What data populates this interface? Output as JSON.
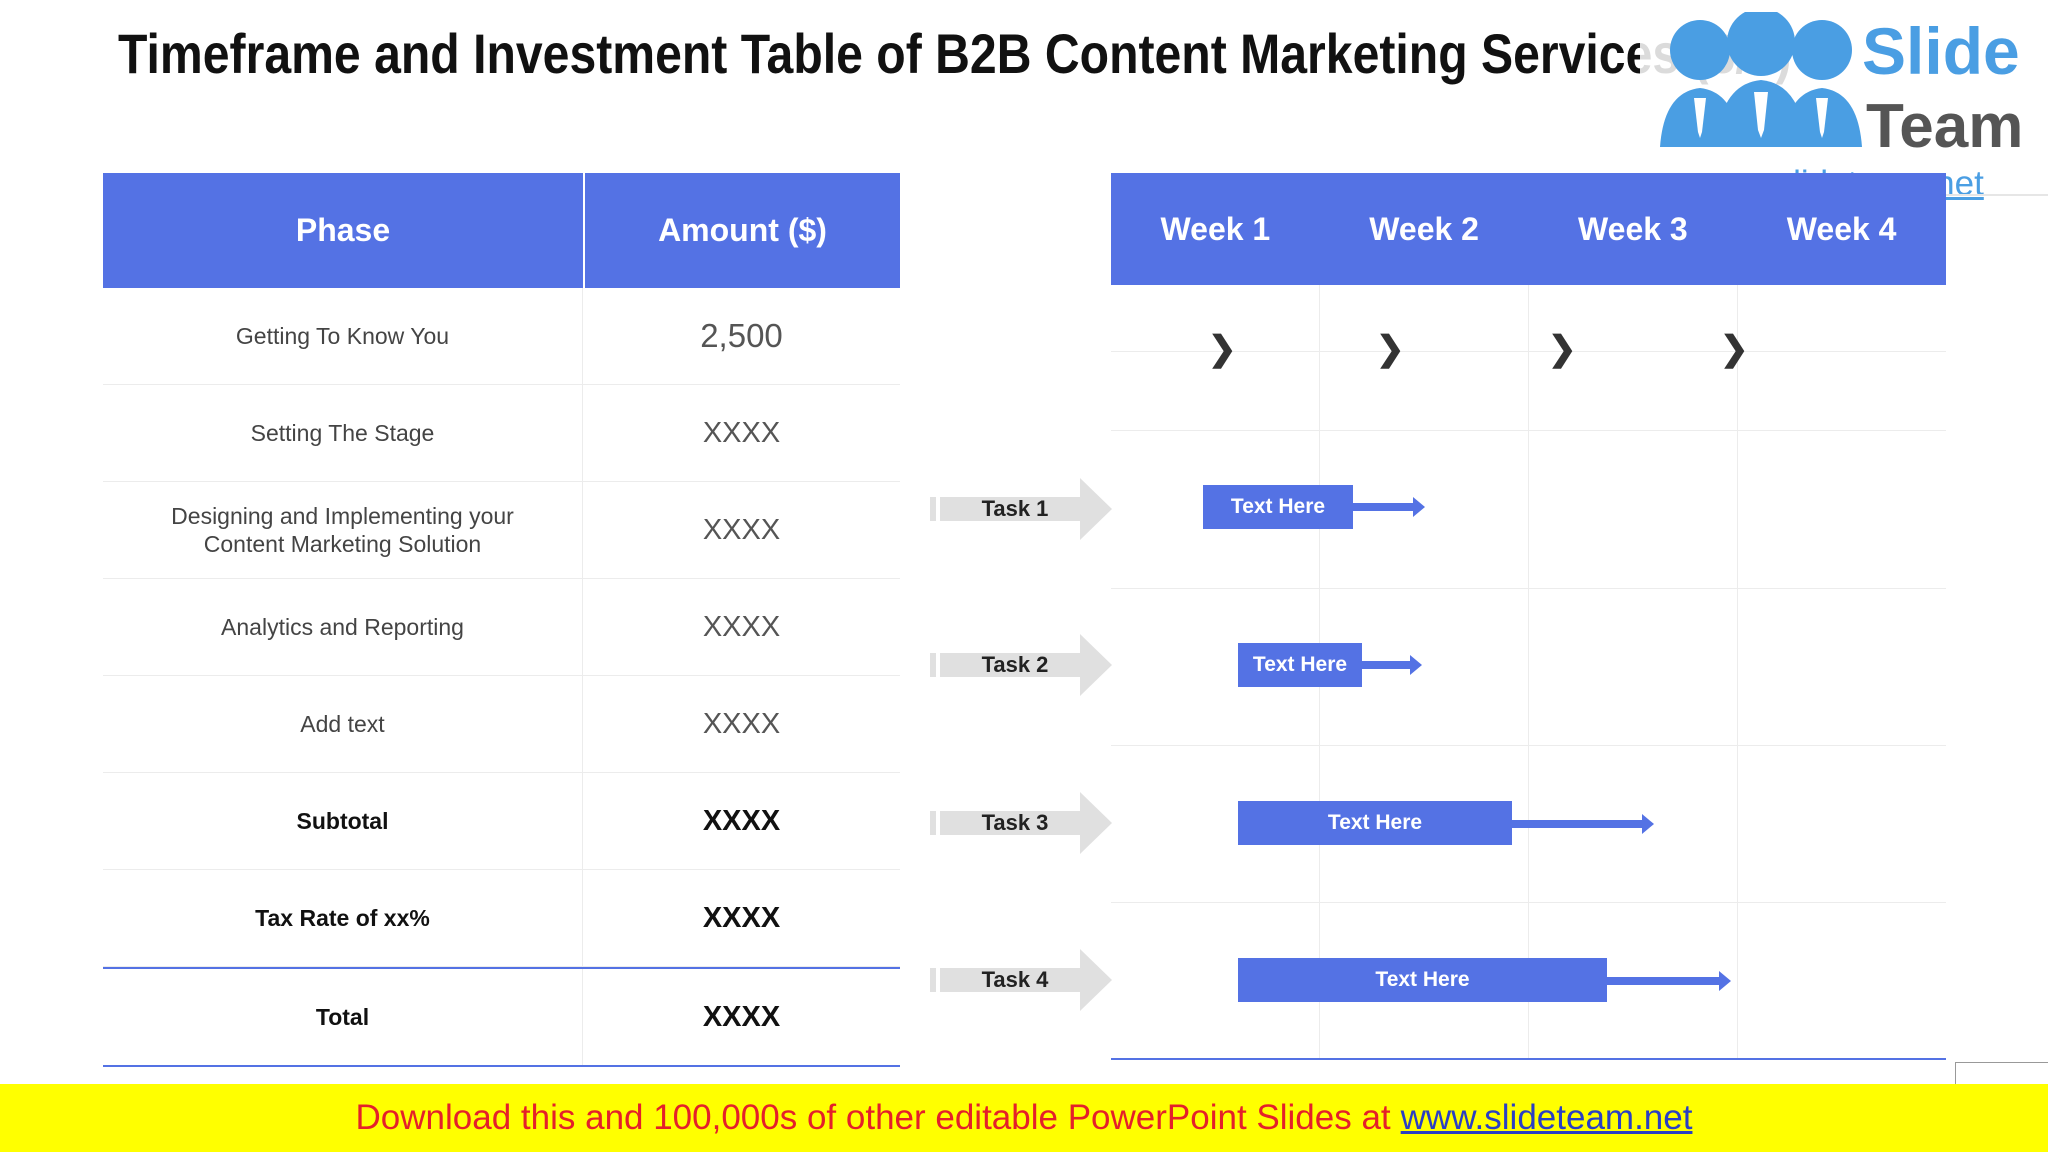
{
  "slide": {
    "title": "Timeframe and Investment Table of B2B Content Marketing Services (3/3)"
  },
  "logo": {
    "brand_line1": "Slide",
    "brand_line2": "Team",
    "url": "www.slideteam.net",
    "color": "#4a9ee3"
  },
  "investment_table": {
    "headers": [
      "Phase",
      "Amount ($)"
    ],
    "rows": [
      {
        "phase": "Getting To Know You",
        "amount": "2,500"
      },
      {
        "phase": "Setting The Stage",
        "amount": "XXXX"
      },
      {
        "phase": "Designing and Implementing your Content Marketing Solution",
        "amount": "XXXX"
      },
      {
        "phase": "Analytics and Reporting",
        "amount": "XXXX"
      },
      {
        "phase": "Add text",
        "amount": "XXXX"
      },
      {
        "phase": "Subtotal",
        "amount": "XXXX"
      },
      {
        "phase": "Tax Rate of xx%",
        "amount": "XXXX"
      },
      {
        "phase": "Total",
        "amount": "XXXX"
      }
    ]
  },
  "timeline": {
    "weeks": [
      "Week 1",
      "Week 2",
      "Week 3",
      "Week 4"
    ],
    "chevron": "❯",
    "tasks": [
      {
        "label": "Task 1",
        "bar_text": "Text Here"
      },
      {
        "label": "Task 2",
        "bar_text": "Text Here"
      },
      {
        "label": "Task 3",
        "bar_text": "Text Here"
      },
      {
        "label": "Task 4",
        "bar_text": "Text Here"
      }
    ]
  },
  "footer": {
    "text": "Download this and 100,000s of other editable PowerPoint Slides at",
    "link": "www.slideteam.net"
  },
  "colors": {
    "accent": "#5472e4",
    "footer_bg": "#ffff00",
    "footer_text": "#e4202a",
    "task_arrow": "#e0e0e0"
  }
}
